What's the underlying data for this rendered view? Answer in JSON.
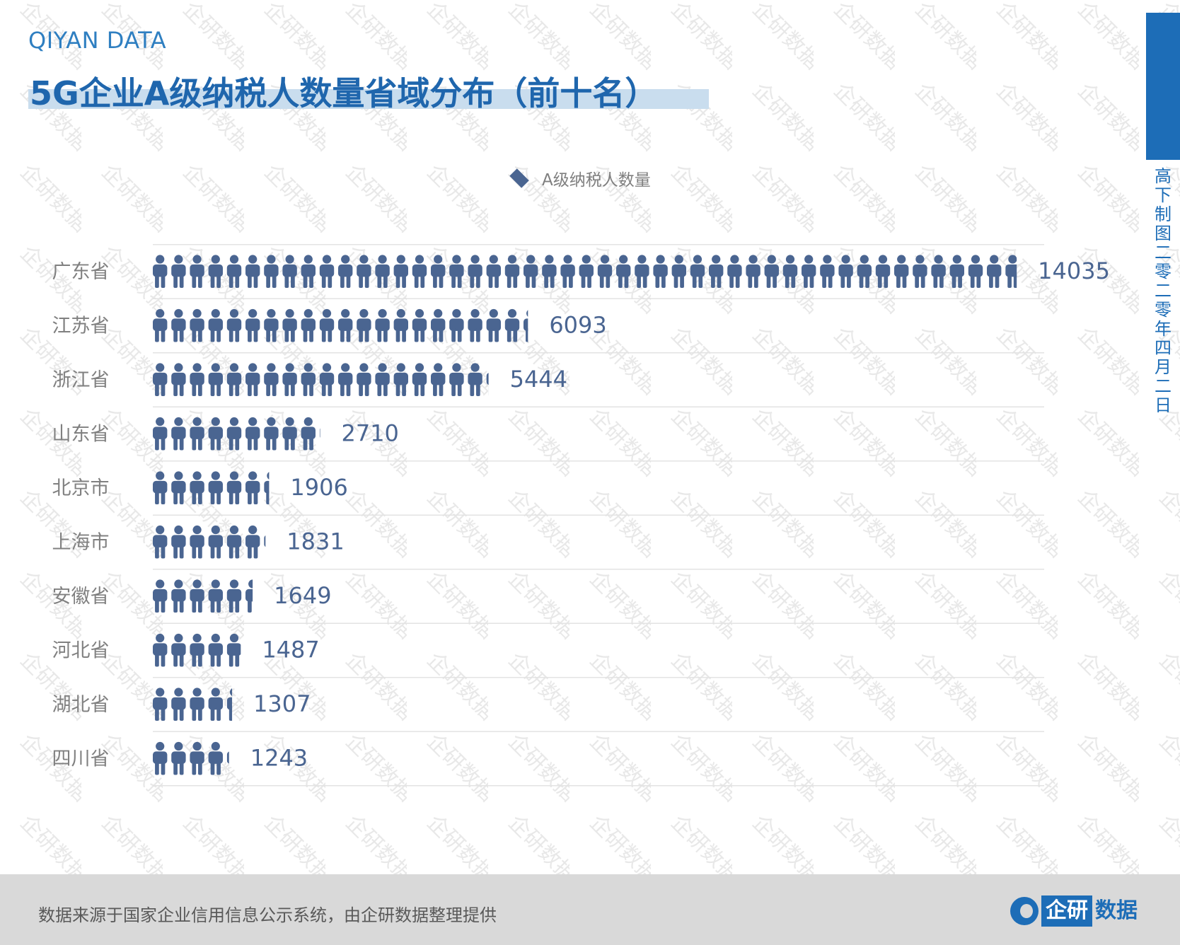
{
  "brand": "QIYAN DATA",
  "title": "5G企业A级纳税人数量省域分布（前十名）",
  "legend": {
    "label": "A级纳税人数量",
    "marker_color": "#4a6591"
  },
  "watermark": "企研数据",
  "side": {
    "text": "高下制图 二零二零年四月二日"
  },
  "footer": {
    "source": "数据来源于国家企业信用信息公示系统，由企研数据整理提供",
    "logo_box": "企研",
    "logo_text": "数据"
  },
  "colors": {
    "icon": "#4a6591",
    "accent": "#1d6db7",
    "grid": "#e3e3e3",
    "label": "#808080",
    "value": "#4a6591"
  },
  "chart_data": {
    "type": "bar",
    "orientation": "horizontal",
    "pictograph": "person-icon",
    "unit_per_icon": 300,
    "categories": [
      "广东省",
      "江苏省",
      "浙江省",
      "山东省",
      "北京市",
      "上海市",
      "安徽省",
      "河北省",
      "湖北省",
      "四川省"
    ],
    "series": [
      {
        "name": "A级纳税人数量",
        "values": [
          14035,
          6093,
          5444,
          2710,
          1906,
          1831,
          1649,
          1487,
          1307,
          1243
        ]
      }
    ],
    "legend_position": "top-center",
    "grid": true
  }
}
